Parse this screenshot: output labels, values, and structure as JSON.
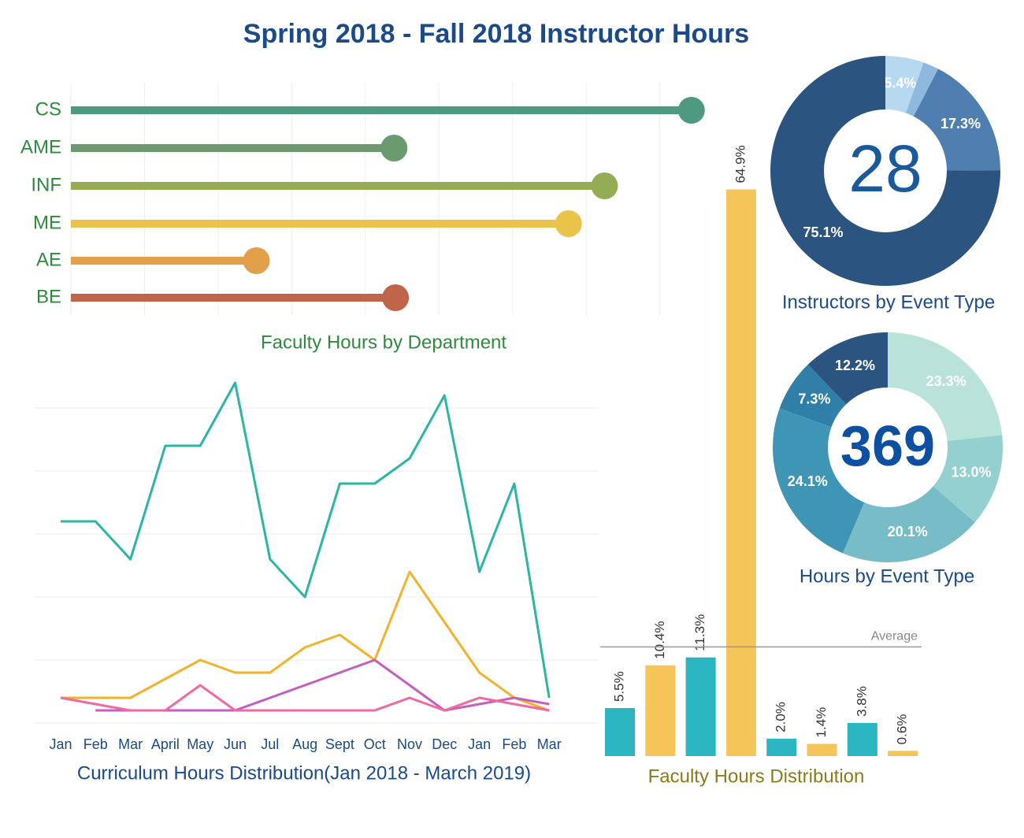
{
  "title": "Spring 2018 - Fall 2018 Instructor Hours",
  "chart_data": [
    {
      "type": "lollipop",
      "title": "Faculty Hours by Department",
      "categories": [
        "CS",
        "AME",
        "INF",
        "ME",
        "AE",
        "BE"
      ],
      "values": [
        8.43,
        4.39,
        7.25,
        6.76,
        2.52,
        4.41
      ],
      "colors": [
        "#4e9a80",
        "#6a9a6d",
        "#94ad55",
        "#eac44a",
        "#e3a04b",
        "#c0654a"
      ],
      "xlim": [
        0,
        8.7
      ],
      "xticks": [
        0,
        1,
        2,
        3,
        4,
        5,
        6,
        7,
        8
      ],
      "grid": true
    },
    {
      "type": "line",
      "title": "Curriculum Hours Distribution(Jan 2018 - March 2019)",
      "categories": [
        "Jan",
        "Feb",
        "Mar",
        "April",
        "May",
        "Jun",
        "Jul",
        "Aug",
        "Sept",
        "Oct",
        "Nov",
        "Dec",
        "Jan",
        "Feb",
        "Mar"
      ],
      "series": [
        {
          "color": "#2ab5a5",
          "values": [
            3.2,
            3.2,
            2.6,
            4.4,
            4.4,
            5.4,
            2.6,
            2.0,
            3.8,
            3.8,
            4.2,
            5.2,
            2.4,
            3.8,
            0.4
          ]
        },
        {
          "color": "#f2b32a",
          "values": [
            0.4,
            0.4,
            0.4,
            0.7,
            1.0,
            0.8,
            0.8,
            1.2,
            1.4,
            1.0,
            2.4,
            1.6,
            0.8,
            0.4,
            0.2
          ]
        },
        {
          "color": "#c45ec0",
          "values": [
            null,
            0.2,
            0.2,
            0.2,
            0.2,
            0.2,
            0.4,
            0.6,
            0.8,
            1.0,
            0.6,
            0.2,
            0.3,
            0.4,
            0.3
          ]
        },
        {
          "color": "#f06aa0",
          "values": [
            0.4,
            0.3,
            0.2,
            0.2,
            0.6,
            0.2,
            0.2,
            0.2,
            0.2,
            0.2,
            0.4,
            0.2,
            0.4,
            0.3,
            0.2
          ]
        }
      ],
      "ylim": [
        0,
        5.6
      ],
      "yticks": [
        0,
        1,
        2,
        3,
        4,
        5
      ],
      "grid": true
    },
    {
      "type": "bar",
      "title": "Faculty Hours Distribution",
      "values": [
        5.5,
        10.4,
        11.3,
        64.9,
        2.0,
        1.4,
        3.8,
        0.6
      ],
      "value_labels": [
        "5.5%",
        "10.4%",
        "11.3%",
        "64.9%",
        "2.0%",
        "1.4%",
        "3.8%",
        "0.6%"
      ],
      "colors": [
        "#2bb5c0",
        "#f5c55a",
        "#2bb5c0",
        "#f5c55a",
        "#2bb5c0",
        "#f5c55a",
        "#2bb5c0",
        "#f5c55a"
      ],
      "ylim": [
        0,
        70
      ],
      "reference_line": {
        "label": "Average",
        "value": 12.5
      }
    },
    {
      "type": "donut",
      "title": "Instructors by Event Type",
      "center_value": 28,
      "values": [
        5.4,
        2.2,
        17.3,
        75.1
      ],
      "value_labels": [
        "5.4%",
        null,
        "17.3%",
        "75.1%"
      ],
      "colors": [
        "#b6d9ef",
        "#8fb8dd",
        "#4f7fb0",
        "#2b5580"
      ]
    },
    {
      "type": "donut",
      "title": "Hours by Event Type",
      "center_value": 369,
      "values": [
        23.3,
        13.0,
        20.1,
        24.1,
        7.3,
        12.2
      ],
      "value_labels": [
        "23.3%",
        "13.0%",
        "20.1%",
        "24.1%",
        "7.3%",
        "12.2%"
      ],
      "colors": [
        "#b9e3d8",
        "#94d0d0",
        "#78bcc8",
        "#3f95b5",
        "#2f7fa8",
        "#2b5580"
      ]
    }
  ]
}
